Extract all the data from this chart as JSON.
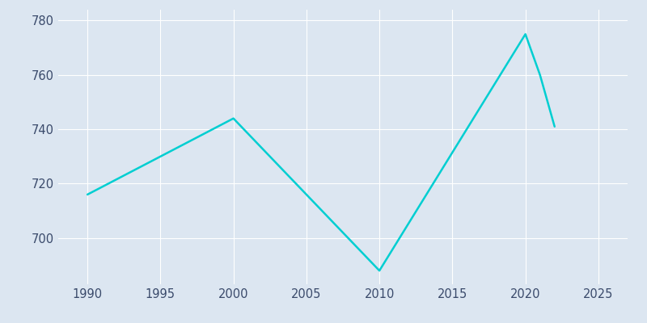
{
  "years": [
    1990,
    2000,
    2010,
    2020,
    2021,
    2022
  ],
  "population": [
    716,
    744,
    688,
    775,
    760,
    741
  ],
  "line_color": "#00CED1",
  "background_color": "#dce6f1",
  "grid_color": "#ffffff",
  "xlim": [
    1988,
    2027
  ],
  "ylim": [
    683,
    784
  ],
  "xticks": [
    1990,
    1995,
    2000,
    2005,
    2010,
    2015,
    2020,
    2025
  ],
  "yticks": [
    700,
    720,
    740,
    760,
    780
  ],
  "line_width": 1.8,
  "tick_label_color": "#3a4a6b",
  "tick_fontsize": 10.5
}
